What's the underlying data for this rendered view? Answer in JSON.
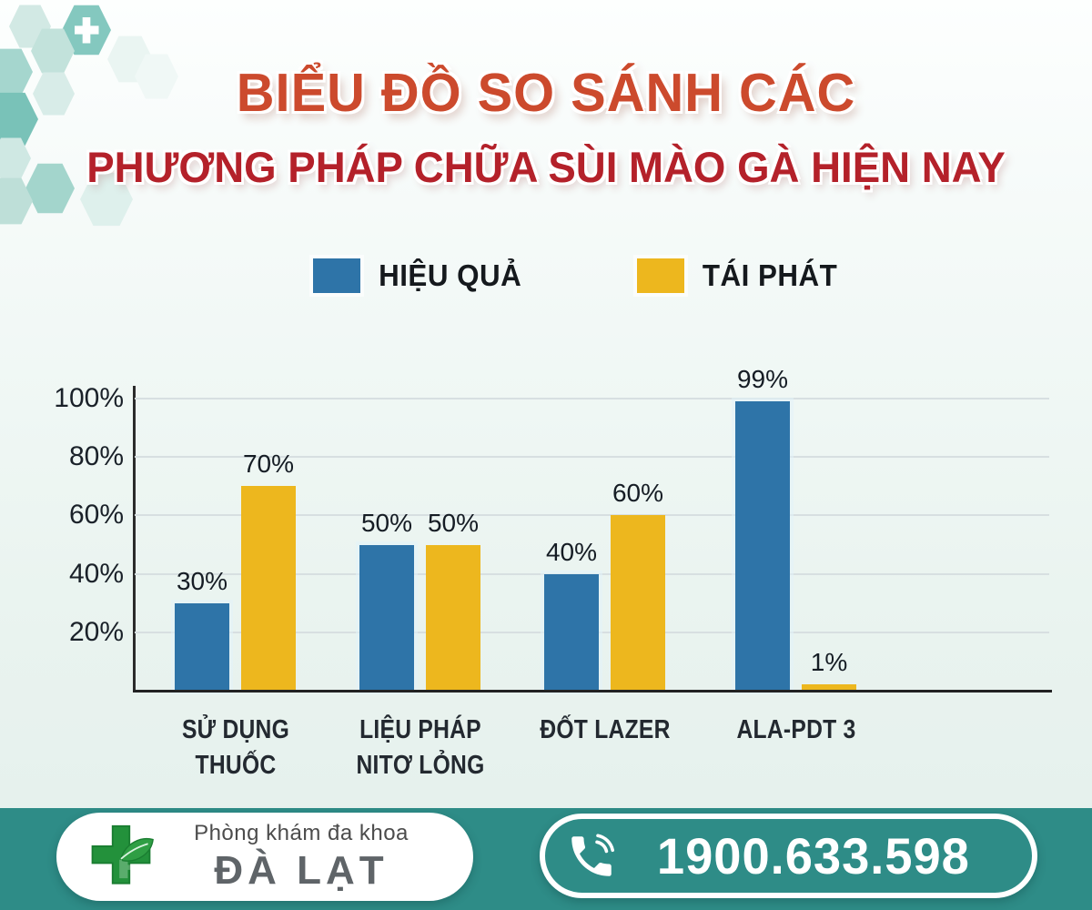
{
  "title": {
    "line1": "BIỂU ĐỒ SO SÁNH CÁC",
    "line2": "PHƯƠNG PHÁP CHỮA SÙI MÀO GÀ HIỆN NAY"
  },
  "legend": [
    {
      "label": "HIỆU QUẢ",
      "color": "#2e74a8"
    },
    {
      "label": "TÁI PHÁT",
      "color": "#edb71e"
    }
  ],
  "chart_data": {
    "type": "bar",
    "title": "BIỂU ĐỒ SO SÁNH CÁC PHƯƠNG PHÁP CHỮA SÙI MÀO GÀ HIỆN NAY",
    "categories": [
      "SỬ DỤNG\nTHUỐC",
      "LIỆU PHÁP\nNITƠ LỎNG",
      "ĐỐT LAZER",
      "ALA-PDT 3"
    ],
    "series": [
      {
        "name": "HIỆU QUẢ",
        "color": "#2e74a8",
        "values": [
          30,
          50,
          40,
          99
        ]
      },
      {
        "name": "TÁI PHÁT",
        "color": "#edb71e",
        "values": [
          70,
          50,
          60,
          1
        ]
      }
    ],
    "value_label_suffix": "%",
    "y_ticks": [
      {
        "value": 100,
        "label": "100%"
      },
      {
        "value": 80,
        "label": "80%"
      },
      {
        "value": 60,
        "label": "60%"
      },
      {
        "value": 40,
        "label": "40%"
      },
      {
        "value": 20,
        "label": "20%"
      }
    ],
    "ylim": [
      0,
      100
    ],
    "grid": true,
    "legend_position": "top"
  },
  "footer": {
    "clinic": {
      "line1": "Phòng khám đa khoa",
      "line2": "ĐÀ LẠT"
    },
    "phone": "1900.633.598"
  },
  "colors": {
    "accent_teal": "#2e8c87",
    "bar_blue": "#2e74a8",
    "bar_yellow": "#edb71e",
    "title_orange_red": "#cc4a2d",
    "title_dark_red": "#b4212a",
    "logo_green": "#23913b"
  }
}
